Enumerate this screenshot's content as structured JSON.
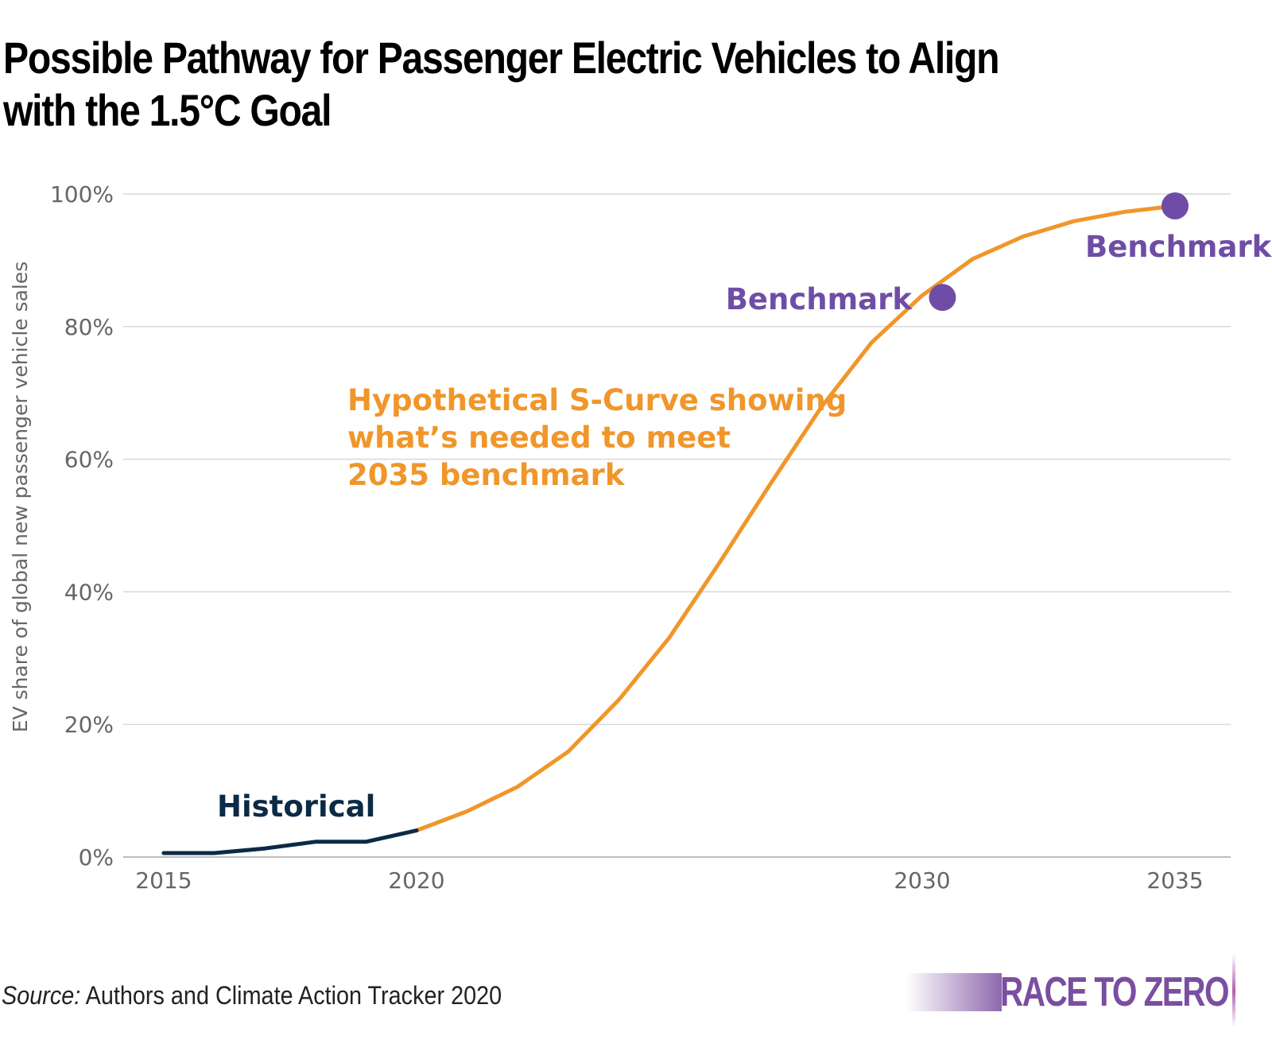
{
  "header": {
    "title": "Possible Pathway for Passenger Electric Vehicles to Align with the 1.5°C Goal"
  },
  "chart_data": {
    "type": "line",
    "title": "Possible Pathway for Passenger Electric Vehicles to Align with the 1.5°C Goal",
    "xlabel": "",
    "ylabel": "EV share of global new passenger vehicle sales",
    "xlim": [
      2014.2,
      2036.1
    ],
    "ylim": [
      0,
      100
    ],
    "x_ticks": [
      2015,
      2020,
      2030,
      2035
    ],
    "x_tick_labels": [
      "2015",
      "2020",
      "2030",
      "2035"
    ],
    "y_ticks": [
      0,
      20,
      40,
      60,
      80,
      100
    ],
    "y_tick_labels": [
      "0%",
      "20%",
      "40%",
      "60%",
      "80%",
      "100%"
    ],
    "grid": true,
    "series": [
      {
        "name": "Historical",
        "color": "#0b2a45",
        "x": [
          2015,
          2016,
          2017,
          2018,
          2019,
          2020
        ],
        "y": [
          0.6,
          0.6,
          1.3,
          2.3,
          2.3,
          4.0
        ]
      },
      {
        "name": "Hypothetical S-Curve showing what’s needed to meet 2035 benchmark",
        "color": "#f0962a",
        "x": [
          2020,
          2021,
          2022,
          2023,
          2024,
          2025,
          2026,
          2027,
          2028,
          2029,
          2030,
          2031,
          2032,
          2033,
          2034,
          2035
        ],
        "y": [
          4.0,
          6.9,
          10.6,
          15.9,
          23.7,
          33.1,
          44.5,
          56.3,
          67.8,
          77.6,
          84.7,
          90.2,
          93.6,
          95.9,
          97.3,
          98.2
        ]
      }
    ],
    "benchmarks": [
      {
        "label": "Benchmark",
        "x": 2030.4,
        "y": 84.4,
        "color": "#6f4da6"
      },
      {
        "label": "Benchmark",
        "x": 2035,
        "y": 98.2,
        "color": "#6f4da6"
      }
    ],
    "annotations": [
      {
        "text": "Historical",
        "color": "#0b2a45"
      },
      {
        "text": "Hypothetical S-Curve showing",
        "color": "#f0962a"
      },
      {
        "text": "what’s needed to meet",
        "color": "#f0962a"
      },
      {
        "text": "2035 benchmark",
        "color": "#f0962a"
      }
    ]
  },
  "footer": {
    "source_label": "Source:",
    "source_text": " Authors and Climate Action Tracker 2020",
    "logo_text": "RACE TO ZERO"
  }
}
